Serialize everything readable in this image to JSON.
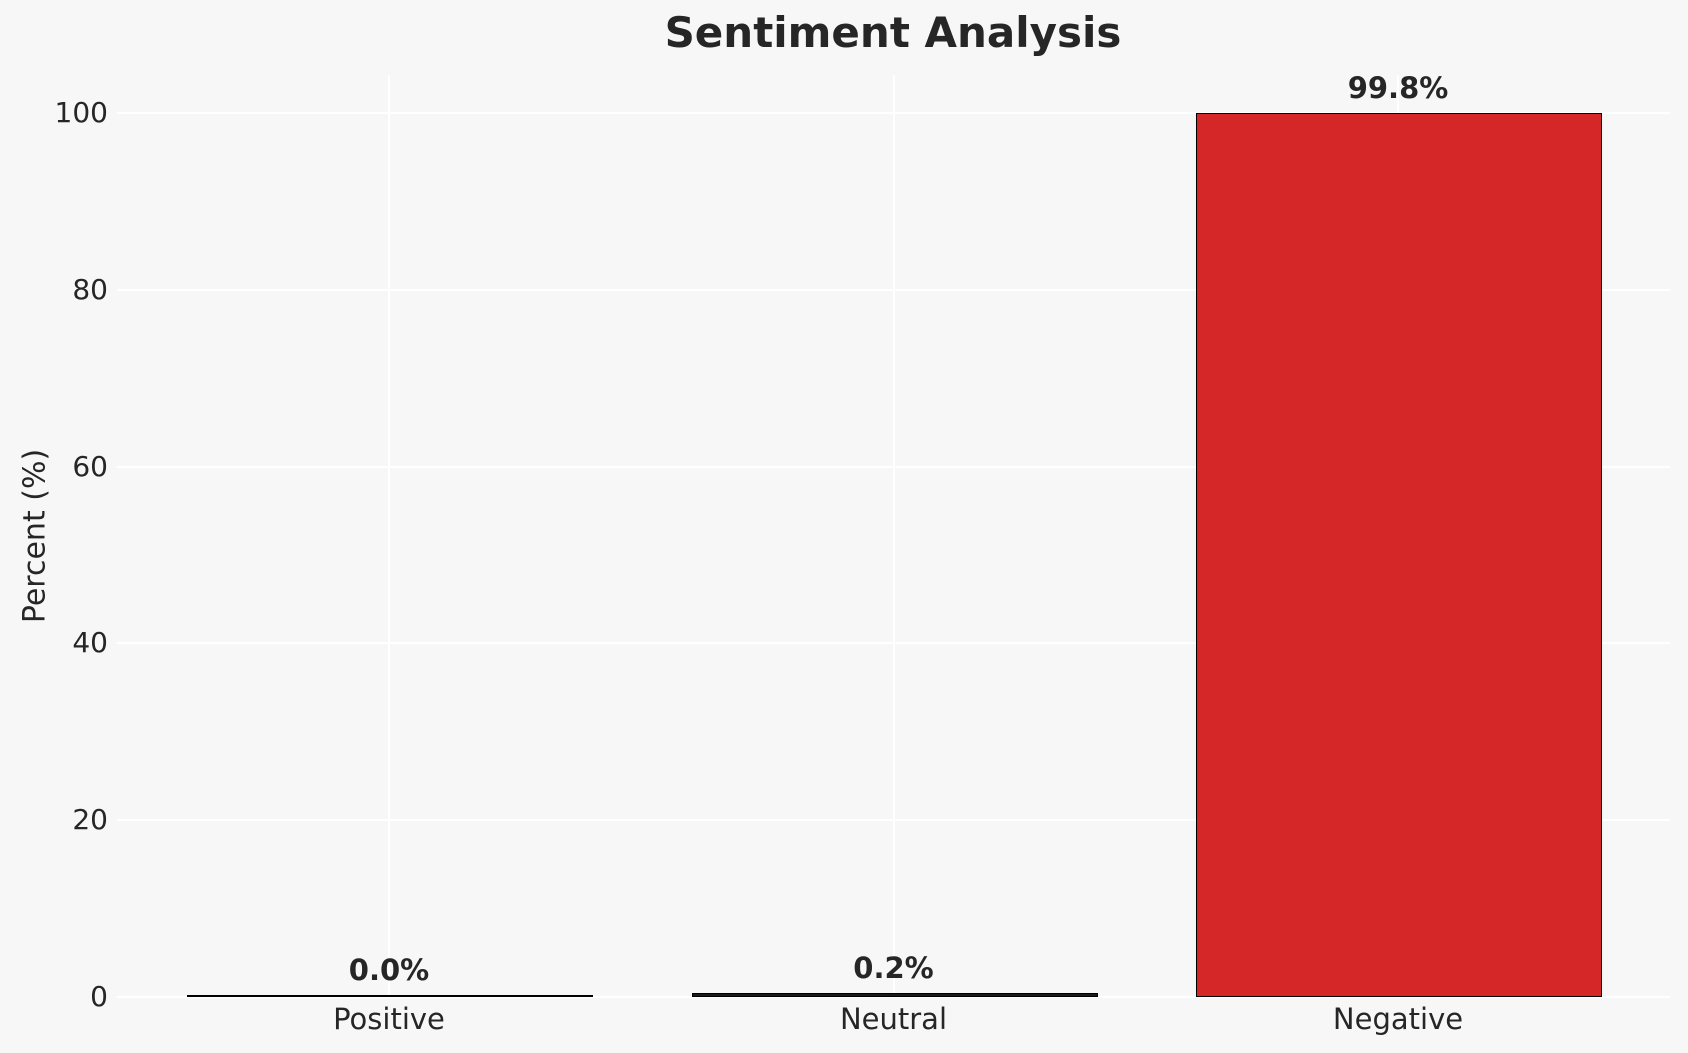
{
  "chart_data": {
    "type": "bar",
    "title": "Sentiment Analysis",
    "ylabel": "Percent (%)",
    "xlabel": "",
    "categories": [
      "Positive",
      "Neutral",
      "Negative"
    ],
    "values": [
      0.0,
      0.2,
      99.8
    ],
    "value_labels": [
      "0.0%",
      "0.2%",
      "99.8%"
    ],
    "bar_colors": [
      "#1a1a1a",
      "#1a1a1a",
      "#d62728"
    ],
    "bar_edge_color": "#000000",
    "yticks": [
      0,
      20,
      40,
      60,
      80,
      100
    ],
    "ylim": [
      0,
      104.3
    ],
    "grid": true,
    "grid_color": "#ffffff",
    "background_color": "#f7f7f7",
    "text_color": "#262626",
    "legend_position": "none"
  }
}
